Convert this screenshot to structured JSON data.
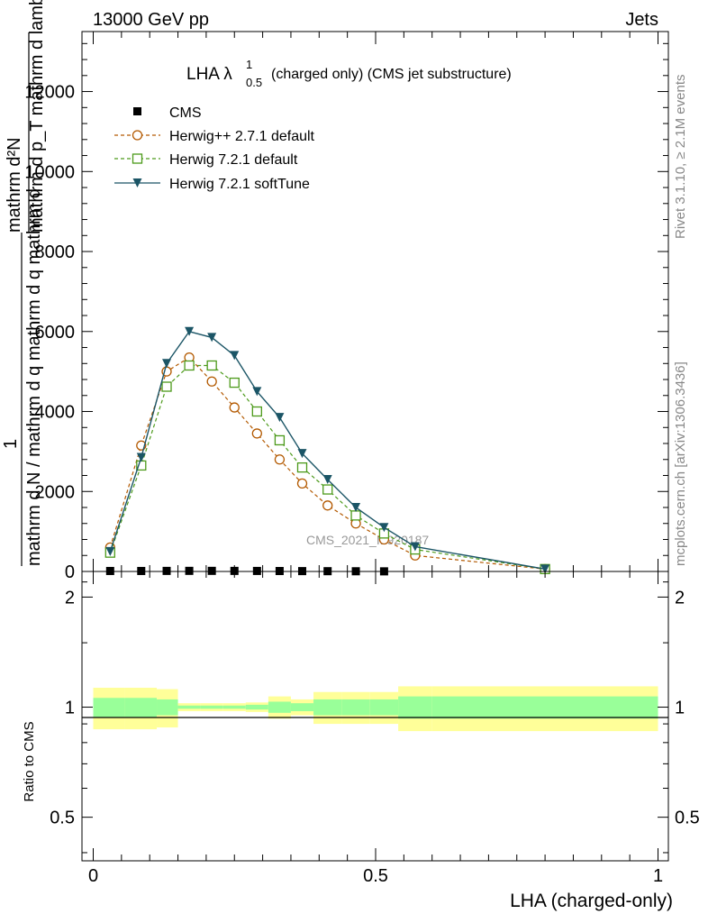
{
  "header": {
    "left": "13000 GeV pp",
    "right": "Jets"
  },
  "side_text": {
    "rivet": "Rivet 3.1.10, ≥ 2.1M events",
    "mcplots": "mcplots.cern.ch [arXiv:1306.3436]"
  },
  "chart_data": [
    {
      "type": "line",
      "title_main": "LHA λ",
      "title_sup": "1",
      "title_sub": "0.5",
      "title_rest": "(charged only) (CMS jet substructure)",
      "ylabel_num": "mathrm d²N",
      "ylabel_den": "mathrm d p_T mathrm d lambda",
      "ylabel_mid": "1",
      "ylabel_bottom": "mathrm d N / mathrm d q mathrm d q mathrm d",
      "watermark": "CMS_2021_I1920187",
      "xlim": [
        0,
        1
      ],
      "ylim": [
        0,
        13500
      ],
      "yticks": [
        0,
        2000,
        4000,
        6000,
        8000,
        10000,
        12000
      ],
      "ytick_labels": [
        "0",
        "2000",
        "4000",
        "6000",
        "8000",
        "10000",
        "12000"
      ],
      "legend_position": "top-left",
      "series": [
        {
          "name": "CMS",
          "color": "#000000",
          "marker": "square-filled",
          "x": [
            0.03,
            0.085,
            0.13,
            0.17,
            0.21,
            0.25,
            0.29,
            0.33,
            0.37,
            0.415,
            0.465,
            0.515
          ],
          "y": [
            12,
            12,
            14,
            15,
            15,
            14,
            13,
            11,
            9,
            7,
            5,
            3
          ]
        },
        {
          "name": "Herwig++ 2.7.1 default",
          "color": "#b35900",
          "marker": "circle-open",
          "dash": true,
          "x": [
            0.03,
            0.085,
            0.13,
            0.17,
            0.21,
            0.25,
            0.29,
            0.33,
            0.37,
            0.415,
            0.465,
            0.515,
            0.57,
            0.8
          ],
          "y": [
            600,
            3150,
            5000,
            5350,
            4750,
            4100,
            3450,
            2800,
            2200,
            1650,
            1200,
            800,
            400,
            60
          ]
        },
        {
          "name": "Herwig 7.2.1 default",
          "color": "#4c9a1a",
          "marker": "square-open",
          "dash": true,
          "x": [
            0.03,
            0.085,
            0.13,
            0.17,
            0.21,
            0.25,
            0.29,
            0.33,
            0.37,
            0.415,
            0.465,
            0.515,
            0.57,
            0.8
          ],
          "y": [
            470,
            2650,
            4620,
            5150,
            5150,
            4720,
            4000,
            3280,
            2600,
            2050,
            1400,
            950,
            550,
            60
          ]
        },
        {
          "name": "Herwig 7.2.1 softTune",
          "color": "#1b5566",
          "marker": "triangle-down-filled",
          "dash": false,
          "x": [
            0.03,
            0.085,
            0.13,
            0.17,
            0.21,
            0.25,
            0.29,
            0.33,
            0.37,
            0.415,
            0.465,
            0.515,
            0.57,
            0.8
          ],
          "y": [
            500,
            2850,
            5200,
            6000,
            5850,
            5400,
            4500,
            3850,
            2950,
            2300,
            1600,
            1100,
            620,
            60
          ]
        }
      ]
    },
    {
      "type": "line",
      "ylabel": "Ratio to CMS",
      "xlabel": "LHA (charged-only)",
      "xlim": [
        0,
        1
      ],
      "ylim": [
        0.38,
        2.35
      ],
      "ylog": true,
      "yticks": [
        0.5,
        1,
        2
      ],
      "ytick_labels": [
        "0.5",
        "1",
        "2"
      ],
      "xticks": [
        0,
        0.5,
        1
      ],
      "xtick_labels": [
        "0",
        "0.5",
        "1"
      ],
      "bands": {
        "edges": [
          0,
          0.0565,
          0.1125,
          0.15,
          0.19,
          0.23,
          0.27,
          0.31,
          0.35,
          0.39,
          0.44,
          0.49,
          0.54,
          0.6,
          1.0
        ],
        "outer_rel": [
          0.13,
          0.13,
          0.12,
          0.025,
          0.025,
          0.025,
          0.03,
          0.07,
          0.05,
          0.1,
          0.1,
          0.1,
          0.14,
          0.14
        ],
        "inner_rel": [
          0.06,
          0.06,
          0.05,
          0.01,
          0.01,
          0.01,
          0.015,
          0.035,
          0.025,
          0.05,
          0.05,
          0.05,
          0.07,
          0.07
        ],
        "outer_color": "#ffff99",
        "inner_color": "#99ff99"
      }
    }
  ]
}
